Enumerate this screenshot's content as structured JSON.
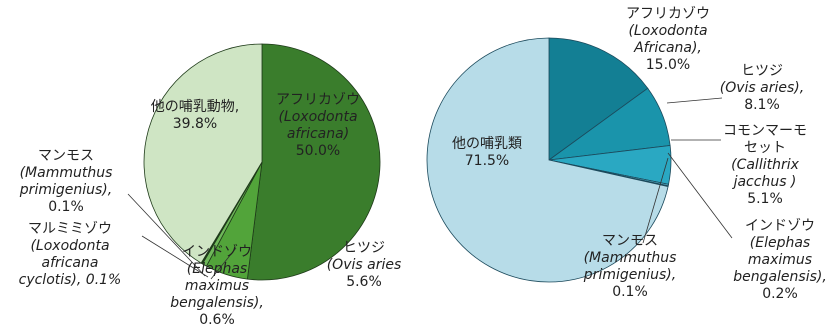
{
  "chart_data": [
    {
      "type": "pie",
      "slices": [
        {
          "label": [
            "アフリカゾウ",
            "(Loxodonta",
            "africana)",
            "50.0%"
          ],
          "value": 50.0,
          "color": "#3a7d2c"
        },
        {
          "label": [
            "ヒツジ",
            "(Ovis aries",
            "5.6%"
          ],
          "value": 5.6,
          "color": "#52a43a"
        },
        {
          "label": [
            "インドゾウ",
            "(Elephas",
            "maximus",
            "bengalensis),",
            "0.6%"
          ],
          "value": 0.6,
          "color": "#6fb85a"
        },
        {
          "label": [
            "マルミミゾウ",
            "(Loxodonta",
            "africana",
            "cyclotis), 0.1%"
          ],
          "value": 0.1,
          "color": "#8ccf6e"
        },
        {
          "label": [
            "マンモス",
            "(Mammuthus",
            "primigenius),",
            "0.1%"
          ],
          "value": 0.1,
          "color": "#a8dc8a"
        },
        {
          "label": [
            "他の哺乳動物,",
            "39.8%"
          ],
          "value": 39.8,
          "color": "#cfe5c4"
        }
      ]
    },
    {
      "type": "pie",
      "slices": [
        {
          "label": [
            "アフリカゾウ",
            "(Loxodonta",
            "Africana),",
            "15.0%"
          ],
          "value": 15.0,
          "color": "#137f94"
        },
        {
          "label": [
            "ヒツジ",
            "(Ovis aries),",
            "8.1%"
          ],
          "value": 8.1,
          "color": "#1a94ab"
        },
        {
          "label": [
            "コモンマーモ",
            "セット",
            "(Callithrix",
            "jacchus )",
            "5.1%"
          ],
          "value": 5.1,
          "color": "#2aa8c2"
        },
        {
          "label": [
            "インドゾウ",
            "(Elephas",
            "maximus",
            "bengalensis),",
            "0.2%"
          ],
          "value": 0.2,
          "color": "#5cbad0"
        },
        {
          "label": [
            "マンモス",
            "(Mammuthus",
            "primigenius),",
            "0.1%"
          ],
          "value": 0.1,
          "color": "#7fc6d8"
        },
        {
          "label": [
            "他の哺乳類",
            "71.5%"
          ],
          "value": 71.5,
          "color": "#b7dce8"
        }
      ]
    }
  ]
}
